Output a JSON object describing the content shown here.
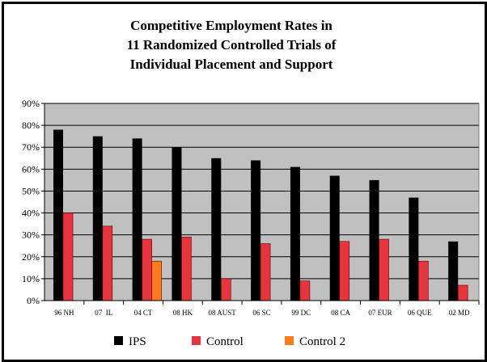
{
  "chart_data": {
    "type": "bar",
    "title": [
      "Competitive Employment Rates in",
      "11 Randomized Controlled Trials of",
      "Individual Placement and Support"
    ],
    "xlabel": "",
    "ylabel": "",
    "ylim": [
      0,
      90
    ],
    "yticks": [
      "0%",
      "10%",
      "20%",
      "30%",
      "40%",
      "50%",
      "60%",
      "70%",
      "80%",
      "90%"
    ],
    "grid": true,
    "legend_position": "bottom",
    "categories": [
      "96 NH",
      "07  IL",
      "04 CT",
      "08 HK",
      "08 AUST",
      "06 SC",
      "99 DC",
      "08 CA",
      "07 EUR",
      "06 QUE",
      "02 MD"
    ],
    "series": [
      {
        "name": "IPS",
        "color": "#000000",
        "values": [
          78,
          75,
          74,
          70,
          65,
          64,
          61,
          57,
          55,
          47,
          27
        ]
      },
      {
        "name": "Control",
        "color": "#e8343c",
        "values": [
          40,
          34,
          28,
          29,
          10,
          26,
          9,
          27,
          28,
          18,
          7
        ]
      },
      {
        "name": "Control 2",
        "color": "#ff7a1a",
        "values": [
          null,
          null,
          18,
          null,
          null,
          null,
          null,
          null,
          null,
          null,
          null
        ]
      }
    ],
    "plot_background": "#c0c0c0"
  }
}
